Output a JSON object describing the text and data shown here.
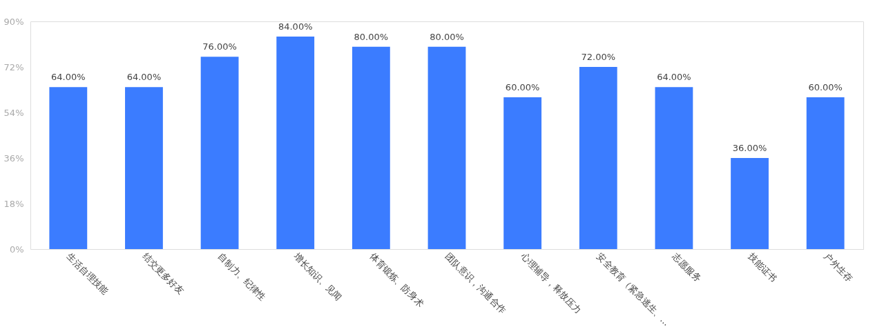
{
  "chart_data": {
    "type": "bar",
    "categories": [
      "生活自理技能",
      "结交更多好友",
      "自制力、纪律性",
      "增长知识、见闻",
      "体育锻炼、防身术",
      "团队意识，沟通合作",
      "心理辅导，释放压力",
      "安全教育（紧急逃生、...",
      "志愿服务",
      "技能证书",
      "户外生存"
    ],
    "values": [
      64,
      64,
      76,
      84,
      80,
      80,
      60,
      72,
      64,
      36,
      60
    ],
    "value_labels": [
      "64.00%",
      "64.00%",
      "76.00%",
      "84.00%",
      "80.00%",
      "80.00%",
      "60.00%",
      "72.00%",
      "64.00%",
      "36.00%",
      "60.00%"
    ],
    "color": "#3b7cff",
    "ylim": [
      0,
      90
    ],
    "yticks": [
      {
        "value": 0,
        "label": "0%"
      },
      {
        "value": 18,
        "label": "18%"
      },
      {
        "value": 36,
        "label": "36%"
      },
      {
        "value": 54,
        "label": "54%"
      },
      {
        "value": 72,
        "label": "72%"
      },
      {
        "value": 90,
        "label": "90%"
      }
    ],
    "grid": false
  }
}
